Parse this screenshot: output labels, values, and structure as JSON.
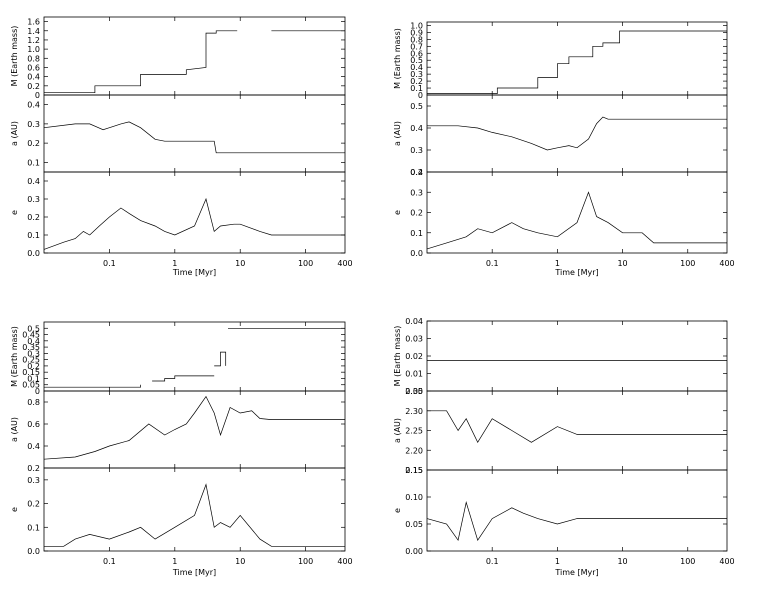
{
  "chart_data": [
    {
      "type": "line",
      "xlabel": "Time [Myr]",
      "x_scale": "log",
      "x_range": [
        0.01,
        400
      ],
      "x_ticks": [
        "0.1",
        "1",
        "10",
        "100",
        "400"
      ],
      "panels": [
        {
          "ylabel": "M (Earth mass)",
          "ylim": [
            0,
            1.7
          ],
          "yticks": [
            "0",
            "0.2",
            "0.4",
            "0.6",
            "0.8",
            "1.0",
            "1.2",
            "1.4",
            "1.6"
          ],
          "series": [
            {
              "x": [
                0.01,
                0.06,
                0.06,
                0.3,
                0.3,
                1.5,
                1.5,
                3.0,
                3.0,
                4.3,
                4.3,
                9
              ],
              "y": [
                0.05,
                0.05,
                0.2,
                0.2,
                0.45,
                0.45,
                0.55,
                0.6,
                1.35,
                1.35,
                1.4,
                1.4
              ]
            },
            {
              "x": [
                30,
                400
              ],
              "y": [
                1.4,
                1.4
              ]
            }
          ]
        },
        {
          "ylabel": "a (AU)",
          "ylim": [
            0.05,
            0.45
          ],
          "yticks": [
            "0.1",
            "0.2",
            "0.3",
            "0.4"
          ],
          "series": [
            {
              "x": [
                0.01,
                0.03,
                0.05,
                0.08,
                0.1,
                0.15,
                0.2,
                0.3,
                0.5,
                0.7,
                1,
                2,
                3,
                4,
                4.3,
                5,
                30,
                400
              ],
              "y": [
                0.28,
                0.3,
                0.3,
                0.27,
                0.28,
                0.3,
                0.31,
                0.28,
                0.22,
                0.21,
                0.21,
                0.21,
                0.21,
                0.21,
                0.15,
                0.15,
                0.15,
                0.15
              ]
            }
          ]
        },
        {
          "ylabel": "e",
          "ylim": [
            0,
            0.45
          ],
          "yticks": [
            "0.0",
            "0.1",
            "0.2",
            "0.3",
            "0.4"
          ],
          "series": [
            {
              "x": [
                0.01,
                0.02,
                0.03,
                0.04,
                0.05,
                0.07,
                0.1,
                0.15,
                0.2,
                0.3,
                0.5,
                0.7,
                1,
                2,
                3,
                4,
                5,
                8,
                10,
                20,
                30,
                100,
                400
              ],
              "y": [
                0.02,
                0.06,
                0.08,
                0.12,
                0.1,
                0.15,
                0.2,
                0.25,
                0.22,
                0.18,
                0.15,
                0.12,
                0.1,
                0.15,
                0.3,
                0.12,
                0.15,
                0.16,
                0.16,
                0.12,
                0.1,
                0.1,
                0.1
              ]
            }
          ]
        }
      ]
    },
    {
      "type": "line",
      "xlabel": "Time [Myr]",
      "x_scale": "log",
      "x_range": [
        0.01,
        400
      ],
      "x_ticks": [
        "0.1",
        "1",
        "10",
        "100",
        "400"
      ],
      "panels": [
        {
          "ylabel": "M (Earth mass)",
          "ylim": [
            0,
            1.05
          ],
          "yticks": [
            "0",
            "0.1",
            "0.2",
            "0.3",
            "0.4",
            "0.5",
            "0.6",
            "0.7",
            "0.8",
            "0.9",
            "1.0"
          ],
          "series": [
            {
              "x": [
                0.01,
                0.12,
                0.12,
                0.5,
                0.5,
                1.0,
                1.0,
                1.5,
                1.5,
                3.5,
                3.5,
                5,
                5,
                9,
                9,
                400
              ],
              "y": [
                0.02,
                0.02,
                0.1,
                0.1,
                0.25,
                0.25,
                0.45,
                0.45,
                0.55,
                0.55,
                0.7,
                0.7,
                0.75,
                0.75,
                0.92,
                0.92
              ]
            }
          ]
        },
        {
          "ylabel": "a (AU)",
          "ylim": [
            0.2,
            0.55
          ],
          "yticks": [
            "0.2",
            "0.3",
            "0.4",
            "0.5"
          ],
          "series": [
            {
              "x": [
                0.01,
                0.03,
                0.06,
                0.1,
                0.2,
                0.4,
                0.7,
                1,
                1.5,
                2,
                3,
                4,
                5,
                6,
                10,
                30,
                400
              ],
              "y": [
                0.41,
                0.41,
                0.4,
                0.38,
                0.36,
                0.33,
                0.3,
                0.31,
                0.32,
                0.31,
                0.35,
                0.42,
                0.45,
                0.44,
                0.44,
                0.44,
                0.44
              ]
            }
          ]
        },
        {
          "ylabel": "e",
          "ylim": [
            0,
            0.4
          ],
          "yticks": [
            "0.0",
            "0.1",
            "0.2",
            "0.3",
            "0.4"
          ],
          "series": [
            {
              "x": [
                0.01,
                0.02,
                0.04,
                0.06,
                0.1,
                0.2,
                0.3,
                0.5,
                1,
                2,
                3,
                4,
                6,
                10,
                20,
                30,
                100,
                400
              ],
              "y": [
                0.02,
                0.05,
                0.08,
                0.12,
                0.1,
                0.15,
                0.12,
                0.1,
                0.08,
                0.15,
                0.3,
                0.18,
                0.15,
                0.1,
                0.1,
                0.05,
                0.05,
                0.05
              ]
            }
          ]
        }
      ]
    },
    {
      "type": "line",
      "xlabel": "Time [Myr]",
      "x_scale": "log",
      "x_range": [
        0.01,
        400
      ],
      "x_ticks": [
        "0.1",
        "1",
        "10",
        "100",
        "400"
      ],
      "panels": [
        {
          "ylabel": "M (Earth mass)",
          "ylim": [
            0,
            0.55
          ],
          "yticks": [
            "0",
            "0.05",
            "0.1",
            "0.15",
            "0.2",
            "0.25",
            "0.3",
            "0.35",
            "0.4",
            "0.45",
            "0.5"
          ],
          "series": [
            {
              "x": [
                0.01,
                0.3,
                0.3
              ],
              "y": [
                0.03,
                0.03,
                0.05
              ]
            },
            {
              "x": [
                0.45,
                0.7,
                0.7,
                1.0,
                1.0,
                4.0
              ],
              "y": [
                0.08,
                0.08,
                0.1,
                0.1,
                0.12,
                0.12
              ]
            },
            {
              "x": [
                4.0,
                5.0,
                5.0,
                6.0,
                6.0
              ],
              "y": [
                0.2,
                0.2,
                0.31,
                0.31,
                0.2
              ]
            },
            {
              "x": [
                6.5,
                400
              ],
              "y": [
                0.5,
                0.5
              ]
            }
          ]
        },
        {
          "ylabel": "a (AU)",
          "ylim": [
            0.2,
            0.9
          ],
          "yticks": [
            "0.2",
            "0.4",
            "0.6",
            "0.8"
          ],
          "series": [
            {
              "x": [
                0.01,
                0.03,
                0.06,
                0.1,
                0.2,
                0.4,
                0.7,
                1,
                1.5,
                2,
                3,
                4,
                5,
                7,
                10,
                15,
                20,
                30,
                400
              ],
              "y": [
                0.28,
                0.3,
                0.35,
                0.4,
                0.45,
                0.6,
                0.5,
                0.55,
                0.6,
                0.7,
                0.85,
                0.7,
                0.5,
                0.75,
                0.7,
                0.72,
                0.65,
                0.64,
                0.64
              ]
            }
          ]
        },
        {
          "ylabel": "e",
          "ylim": [
            0,
            0.35
          ],
          "yticks": [
            "0.0",
            "0.1",
            "0.2",
            "0.3"
          ],
          "series": [
            {
              "x": [
                0.01,
                0.02,
                0.03,
                0.05,
                0.1,
                0.2,
                0.3,
                0.5,
                1,
                2,
                3,
                4,
                5,
                7,
                10,
                20,
                30,
                100,
                400
              ],
              "y": [
                0.02,
                0.02,
                0.05,
                0.07,
                0.05,
                0.08,
                0.1,
                0.05,
                0.1,
                0.15,
                0.28,
                0.1,
                0.12,
                0.1,
                0.15,
                0.05,
                0.02,
                0.02,
                0.02
              ]
            }
          ]
        }
      ]
    },
    {
      "type": "line",
      "xlabel": "Time [Myr]",
      "x_scale": "log",
      "x_range": [
        0.01,
        400
      ],
      "x_ticks": [
        "0.1",
        "1",
        "10",
        "100",
        "400"
      ],
      "panels": [
        {
          "ylabel": "M (Earth mass)",
          "ylim": [
            0,
            0.04
          ],
          "yticks": [
            "0.00",
            "0.01",
            "0.02",
            "0.03",
            "0.04"
          ],
          "series": [
            {
              "x": [
                0.01,
                400
              ],
              "y": [
                0.0175,
                0.0175
              ]
            }
          ]
        },
        {
          "ylabel": "a (AU)",
          "ylim": [
            2.15,
            2.35
          ],
          "yticks": [
            "2.15",
            "2.20",
            "2.25",
            "2.30",
            "2.35"
          ],
          "series": [
            {
              "x": [
                0.01,
                0.02,
                0.03,
                0.04,
                0.06,
                0.1,
                0.2,
                0.4,
                1,
                2,
                4,
                10,
                30,
                100,
                400
              ],
              "y": [
                2.3,
                2.3,
                2.25,
                2.28,
                2.22,
                2.28,
                2.25,
                2.22,
                2.26,
                2.24,
                2.24,
                2.24,
                2.24,
                2.24,
                2.24
              ]
            }
          ]
        },
        {
          "ylabel": "e",
          "ylim": [
            0.0,
            0.15
          ],
          "yticks": [
            "0.00",
            "0.05",
            "0.10",
            "0.15"
          ],
          "series": [
            {
              "x": [
                0.01,
                0.02,
                0.03,
                0.04,
                0.06,
                0.1,
                0.2,
                0.3,
                0.5,
                1,
                2,
                5,
                10,
                30,
                100,
                400
              ],
              "y": [
                0.06,
                0.05,
                0.02,
                0.09,
                0.02,
                0.06,
                0.08,
                0.07,
                0.06,
                0.05,
                0.06,
                0.06,
                0.06,
                0.06,
                0.06,
                0.06
              ]
            }
          ]
        }
      ]
    }
  ]
}
